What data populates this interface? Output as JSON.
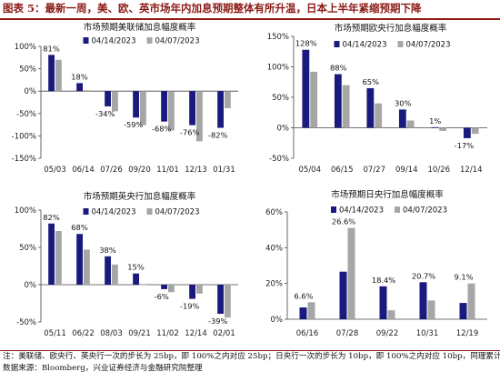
{
  "figure_title": "图表 5：最新一周，美、欧、英市场年内加息预期整体有所升温，日本上半年紧缩预期下降",
  "notes": {
    "line1": "注：美联储、欧央行、英央行一次的步长为 25bp，即 100%之内对应 25bp；日央行一次的步长为 10bp，即 100%之内对应 10bp，同理累计。",
    "line2": "数据来源：Bloomberg，兴业证券经济与金融研究院整理"
  },
  "colors": {
    "series_a": "#1a1a7e",
    "series_b": "#a6a6a6",
    "accent": "#8b1a14",
    "axis": "#444444"
  },
  "chart_data": [
    {
      "type": "bar",
      "title": "市场预期美联储加息幅度概率",
      "categories": [
        "05/03",
        "06/14",
        "07/26",
        "09/20",
        "11/01",
        "12/13",
        "01/31"
      ],
      "series": [
        {
          "name": "04/14/2023",
          "values": [
            81,
            18,
            -34,
            -59,
            -68,
            -76,
            -82
          ]
        },
        {
          "name": "04/07/2023",
          "values": [
            70,
            2,
            -45,
            -76,
            -88,
            -112,
            -38
          ]
        }
      ],
      "data_labels": [
        "81%",
        "18%",
        "-34%",
        "-59%",
        "-68%",
        "-76%",
        "-82%"
      ],
      "yticks": [
        "100%",
        "50%",
        "0%",
        "-50%",
        "-100%",
        "-150%"
      ],
      "ylim": [
        -150,
        100
      ],
      "legend_position": "top-center"
    },
    {
      "type": "bar",
      "title": "市场预期欧央行加息幅度概率",
      "categories": [
        "05/04",
        "06/15",
        "07/27",
        "09/14",
        "10/26",
        "12/14"
      ],
      "series": [
        {
          "name": "04/14/2023",
          "values": [
            128,
            88,
            65,
            30,
            1,
            -17
          ]
        },
        {
          "name": "04/07/2023",
          "values": [
            92,
            70,
            40,
            12,
            -5,
            -10
          ]
        }
      ],
      "data_labels": [
        "128%",
        "88%",
        "65%",
        "30%",
        "1%",
        "-17%"
      ],
      "yticks": [
        "150%",
        "100%",
        "50%",
        "0%",
        "-50%"
      ],
      "ylim": [
        -50,
        150
      ],
      "legend_position": "top-center"
    },
    {
      "type": "bar",
      "title": "市场预期英央行加息幅度概率",
      "categories": [
        "05/11",
        "06/22",
        "08/03",
        "09/21",
        "11/02",
        "12/14",
        "02/01"
      ],
      "series": [
        {
          "name": "04/14/2023",
          "values": [
            82,
            68,
            38,
            15,
            -6,
            -19,
            -39
          ]
        },
        {
          "name": "04/07/2023",
          "values": [
            72,
            47,
            27,
            0,
            -10,
            -12,
            -44
          ]
        }
      ],
      "data_labels": [
        "82%",
        "68%",
        "38%",
        "15%",
        "-6%",
        "-19%",
        "-39%"
      ],
      "yticks": [
        "100%",
        "50%",
        "0%",
        "-50%"
      ],
      "ylim": [
        -50,
        100
      ],
      "legend_position": "top-center"
    },
    {
      "type": "bar",
      "title": "市场预期日央行加息幅度概率",
      "categories": [
        "06/16",
        "07/28",
        "09/22",
        "10/31",
        "12/19"
      ],
      "series": [
        {
          "name": "04/14/2023",
          "values": [
            6.6,
            26.6,
            18.4,
            20.7,
            9.1
          ]
        },
        {
          "name": "04/07/2023",
          "values": [
            9.5,
            51,
            5,
            10.5,
            20
          ]
        }
      ],
      "data_labels": [
        "6.6%",
        "26.6%",
        "18.4%",
        "20.7%",
        "9.1%"
      ],
      "yticks": [
        "60%",
        "40%",
        "20%",
        "0%"
      ],
      "ylim": [
        0,
        60
      ],
      "legend_position": "top-center"
    }
  ]
}
